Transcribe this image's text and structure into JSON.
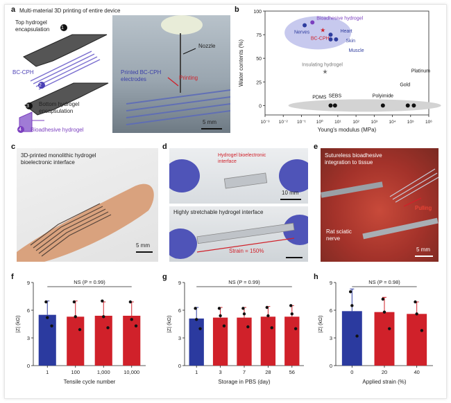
{
  "panels": {
    "a": {
      "letter": "a",
      "title": "Multi-material 3D printing of entire device",
      "layer1": "Top hydrogel encapsulation",
      "num1": "1",
      "layer2": "BC-CPH",
      "num2": "2",
      "layer3": "Bottom hydrogel encapsulation",
      "num3": "3",
      "layer4": "Bioadhesive hydrogel",
      "num4": "4",
      "photo_nozzle": "Nozzle",
      "photo_printing": "Printing",
      "photo_printed": "Printed BC-CPH electrodes",
      "scale": "5 mm"
    },
    "b": {
      "letter": "b",
      "ylabel": "Water contents (%)",
      "xlabel": "Young's modulus (MPa)",
      "labels": {
        "bioadhesive": "Bioadhesive hydrogel",
        "nerves": "Nerves",
        "heart": "Heart",
        "skin": "Skin",
        "bccph": "BC-CPH",
        "muscle": "Muscle",
        "insulating": "Insulating hydrogel",
        "pdms": "PDMS",
        "sebs": "SEBS",
        "polyimide": "Polyimide",
        "gold": "Gold",
        "platinum": "Platinum"
      },
      "yticks": [
        "0",
        "25",
        "50",
        "75",
        "100"
      ],
      "xticks": [
        "10⁻³",
        "10⁻²",
        "10⁻¹",
        "10⁰",
        "10¹",
        "10²",
        "10³",
        "10⁴",
        "10⁵",
        "10⁶"
      ]
    },
    "c": {
      "letter": "c",
      "title": "3D-printed monolithic hydrogel bioelectronic interface",
      "scale": "5 mm"
    },
    "d": {
      "letter": "d",
      "top_label": "Hydrogel bioelectronic interface",
      "top_scale": "10 mm",
      "bottom_title": "Highly stretchable hydrogel interface",
      "strain": "Strain = 150%"
    },
    "e": {
      "letter": "e",
      "title": "Sutureless bioadhesive integration to tissue",
      "pulling": "Pulling",
      "nerve": "Rat sciatic nerve",
      "scale": "5 mm"
    }
  },
  "chart_data": [
    {
      "panel": "b",
      "type": "scatter",
      "xlabel": "Young's modulus (MPa)",
      "ylabel": "Water contents (%)",
      "xscale": "log",
      "xlim": [
        0.001,
        1000000
      ],
      "ylim": [
        -10,
        100
      ],
      "points": [
        {
          "label": "Bioadhesive hydrogel",
          "x": 0.4,
          "y": 88,
          "color": "#7b3fbf"
        },
        {
          "label": "Nerves",
          "x": 0.15,
          "y": 85,
          "color": "#2f3d9e"
        },
        {
          "label": "Heart",
          "x": 4,
          "y": 75,
          "color": "#2f3d9e"
        },
        {
          "label": "Skin",
          "x": 8,
          "y": 70,
          "color": "#2f3d9e"
        },
        {
          "label": "Muscle",
          "x": 4,
          "y": 70,
          "color": "#2f3d9e"
        },
        {
          "label": "BC-CPH",
          "x": 1.5,
          "y": 80,
          "color": "#d0212a"
        },
        {
          "label": "Insulating hydrogel",
          "x": 2,
          "y": 36,
          "color": "#777777"
        },
        {
          "label": "PDMS",
          "x": 4,
          "y": 0,
          "color": "#111111"
        },
        {
          "label": "SEBS",
          "x": 7,
          "y": 0,
          "color": "#111111"
        },
        {
          "label": "Polyimide",
          "x": 3000,
          "y": 0,
          "color": "#111111"
        },
        {
          "label": "Gold",
          "x": 70000,
          "y": 0,
          "color": "#111111"
        },
        {
          "label": "Platinum",
          "x": 150000,
          "y": 0,
          "color": "#111111"
        }
      ]
    },
    {
      "panel": "f",
      "type": "bar",
      "xlabel": "Tensile cycle number",
      "ylabel": "|Z| (kΩ)",
      "ylim": [
        0,
        9
      ],
      "yticks": [
        "0",
        "3",
        "6",
        "9"
      ],
      "annotation": "NS (P = 0.99)",
      "categories": [
        "1",
        "100",
        "1,000",
        "10,000"
      ],
      "values": [
        5.5,
        5.3,
        5.4,
        5.4
      ],
      "errors": [
        1.5,
        1.7,
        1.5,
        1.5
      ],
      "colors": [
        "#2b3a9f",
        "#d0212a",
        "#d0212a",
        "#d0212a"
      ],
      "dots": [
        [
          6.9,
          5.2,
          4.3
        ],
        [
          6.9,
          5.3,
          3.9
        ],
        [
          7.0,
          5.3,
          4.1
        ],
        [
          6.9,
          5.0,
          4.3
        ]
      ]
    },
    {
      "panel": "g",
      "type": "bar",
      "xlabel": "Storage in PBS (day)",
      "ylabel": "|Z| (kΩ)",
      "ylim": [
        0,
        9
      ],
      "yticks": [
        "0",
        "3",
        "6",
        "9"
      ],
      "annotation": "NS (P = 0.99)",
      "categories": [
        "1",
        "3",
        "7",
        "28",
        "56"
      ],
      "values": [
        5.1,
        5.2,
        5.2,
        5.3,
        5.3
      ],
      "errors": [
        1.2,
        1.1,
        1.1,
        1.1,
        1.2
      ],
      "colors": [
        "#2b3a9f",
        "#d0212a",
        "#d0212a",
        "#d0212a",
        "#d0212a"
      ],
      "dots": [
        [
          6.2,
          5.0,
          4.0
        ],
        [
          6.2,
          5.4,
          4.3
        ],
        [
          6.2,
          5.6,
          4.2
        ],
        [
          6.3,
          5.4,
          4.1
        ],
        [
          6.5,
          5.6,
          4.0
        ]
      ]
    },
    {
      "panel": "h",
      "type": "bar",
      "xlabel": "Applied strain (%)",
      "ylabel": "|Z| (kΩ)",
      "ylim": [
        0,
        9
      ],
      "yticks": [
        "0",
        "3",
        "6",
        "9"
      ],
      "annotation": "NS (P = 0.98)",
      "categories": [
        "0",
        "20",
        "40"
      ],
      "values": [
        5.9,
        5.8,
        5.6
      ],
      "errors": [
        2.4,
        1.6,
        1.3
      ],
      "colors": [
        "#2b3a9f",
        "#d0212a",
        "#d0212a"
      ],
      "dots": [
        [
          8.0,
          6.5,
          3.2
        ],
        [
          7.2,
          5.8,
          4.0
        ],
        [
          6.9,
          5.6,
          3.8
        ]
      ]
    }
  ]
}
